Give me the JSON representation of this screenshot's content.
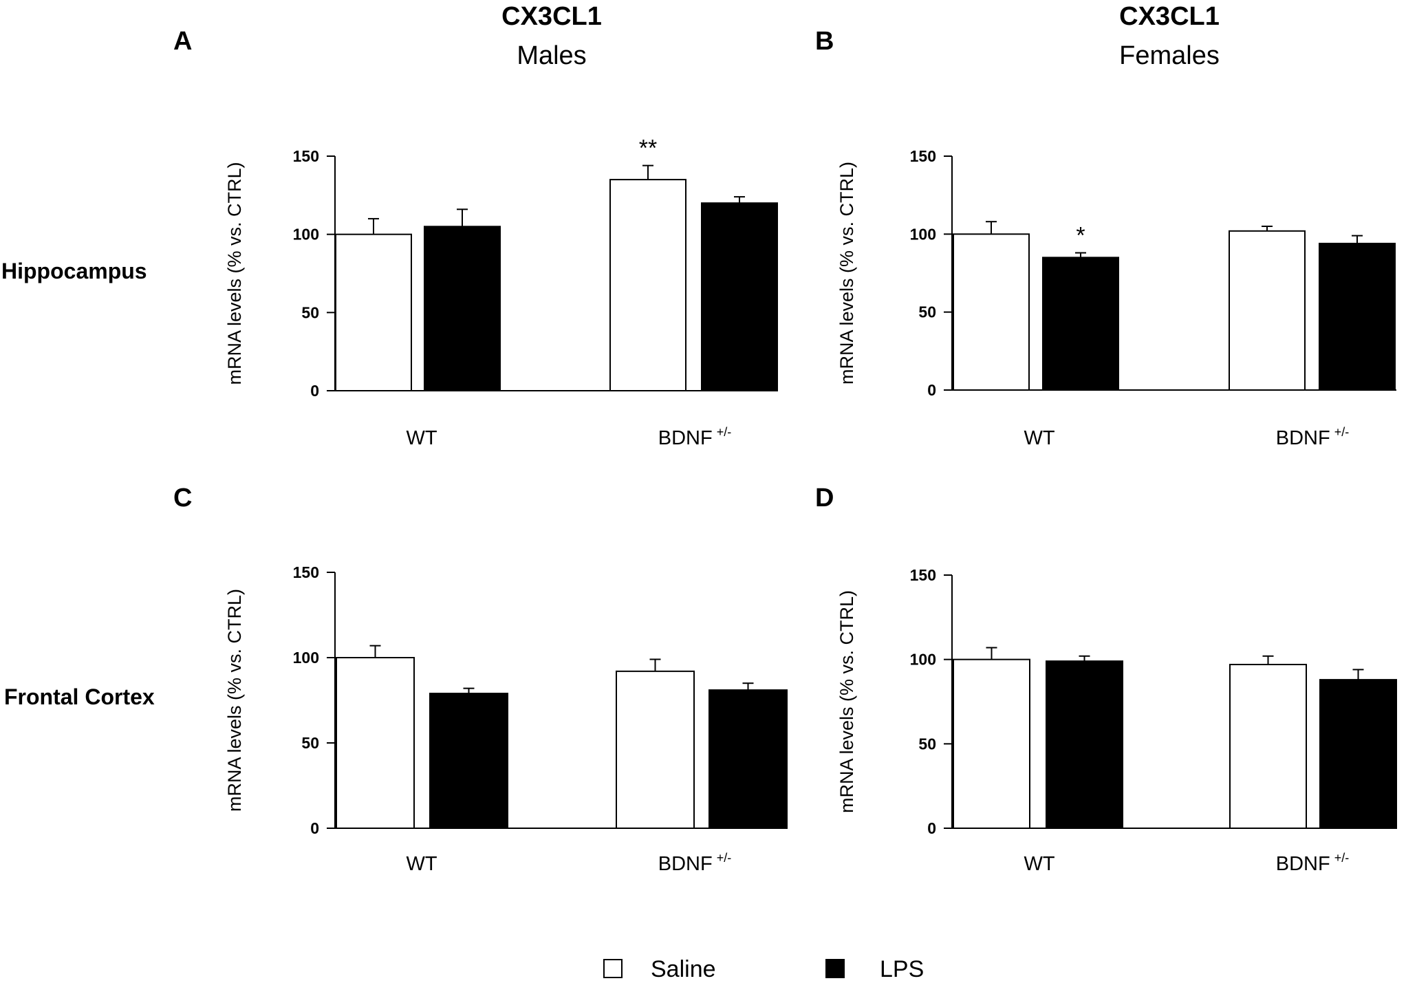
{
  "figure": {
    "header_left": {
      "title": "CX3CL1",
      "subtitle": "Males"
    },
    "header_right": {
      "title": "CX3CL1",
      "subtitle": "Females"
    },
    "row_labels": [
      "Hippocampus",
      "Frontal Cortex"
    ]
  },
  "legend": {
    "items": [
      {
        "label": "Saline",
        "color": "#ffffff"
      },
      {
        "label": "LPS",
        "color": "#000000"
      }
    ]
  },
  "chart_data": [
    {
      "panel": "A",
      "type": "bar",
      "region": "Hippocampus",
      "sex": "Males",
      "ylabel": "mRNA levels (% vs. CTRL)",
      "ylim": [
        0,
        150
      ],
      "yticks": [
        0,
        50,
        100,
        150
      ],
      "categories": [
        "WT",
        "BDNF"
      ],
      "category_superscripts": [
        "",
        "+/-"
      ],
      "series": [
        {
          "name": "Saline",
          "values": [
            100,
            135
          ],
          "errors": [
            10,
            9
          ],
          "annotations": [
            "",
            "**"
          ]
        },
        {
          "name": "LPS",
          "values": [
            105,
            120
          ],
          "errors": [
            11,
            4
          ],
          "annotations": [
            "",
            ""
          ]
        }
      ]
    },
    {
      "panel": "B",
      "type": "bar",
      "region": "Hippocampus",
      "sex": "Females",
      "ylabel": "mRNA levels (% vs. CTRL)",
      "ylim": [
        0,
        150
      ],
      "yticks": [
        0,
        50,
        100,
        150
      ],
      "categories": [
        "WT",
        "BDNF"
      ],
      "category_superscripts": [
        "",
        "+/-"
      ],
      "series": [
        {
          "name": "Saline",
          "values": [
            100,
            102
          ],
          "errors": [
            8,
            3
          ],
          "annotations": [
            "",
            ""
          ]
        },
        {
          "name": "LPS",
          "values": [
            85,
            94
          ],
          "errors": [
            3,
            5
          ],
          "annotations": [
            "*",
            ""
          ]
        }
      ]
    },
    {
      "panel": "C",
      "type": "bar",
      "region": "Frontal Cortex",
      "sex": "Males",
      "ylabel": "mRNA levels (% vs. CTRL)",
      "ylim": [
        0,
        150
      ],
      "yticks": [
        0,
        50,
        100,
        150
      ],
      "categories": [
        "WT",
        "BDNF"
      ],
      "category_superscripts": [
        "",
        "+/-"
      ],
      "series": [
        {
          "name": "Saline",
          "values": [
            100,
            92
          ],
          "errors": [
            7,
            7
          ],
          "annotations": [
            "",
            ""
          ]
        },
        {
          "name": "LPS",
          "values": [
            79,
            81
          ],
          "errors": [
            3,
            4
          ],
          "annotations": [
            "",
            ""
          ]
        }
      ]
    },
    {
      "panel": "D",
      "type": "bar",
      "region": "Frontal Cortex",
      "sex": "Females",
      "ylabel": "mRNA levels (% vs. CTRL)",
      "ylim": [
        0,
        150
      ],
      "yticks": [
        0,
        50,
        100,
        150
      ],
      "categories": [
        "WT",
        "BDNF"
      ],
      "category_superscripts": [
        "",
        "+/-"
      ],
      "series": [
        {
          "name": "Saline",
          "values": [
            100,
            97
          ],
          "errors": [
            7,
            5
          ],
          "annotations": [
            "",
            ""
          ]
        },
        {
          "name": "LPS",
          "values": [
            99,
            88
          ],
          "errors": [
            3,
            6
          ],
          "annotations": [
            "",
            ""
          ]
        }
      ]
    }
  ]
}
